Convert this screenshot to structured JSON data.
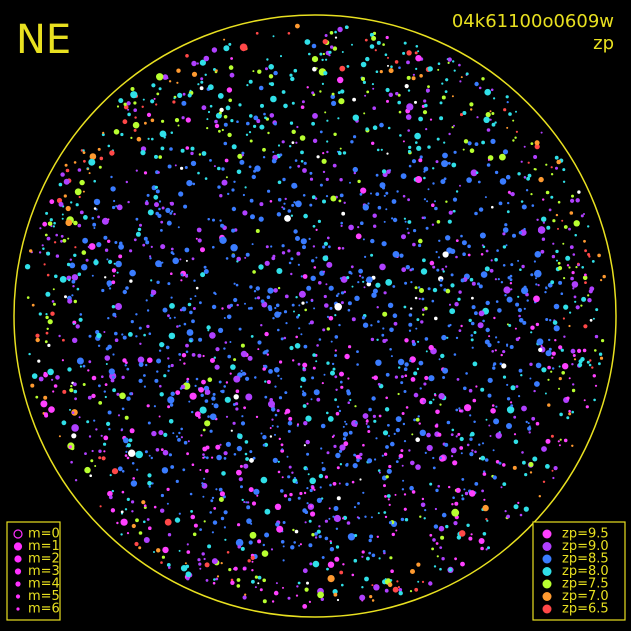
{
  "header": {
    "direction": "NE",
    "id": "04k61100o0609w",
    "mode": "zp"
  },
  "magnitude_legend": {
    "items": [
      "m=0",
      "m=1",
      "m=2",
      "m=3",
      "m=4",
      "m=5",
      "m=6"
    ],
    "color": "#ff30ff"
  },
  "zp_legend": {
    "items": [
      {
        "label": "zp=9.5",
        "color": "#ff40ff"
      },
      {
        "label": "zp=9.0",
        "color": "#b040ff"
      },
      {
        "label": "zp=8.5",
        "color": "#3a7cff"
      },
      {
        "label": "zp=8.0",
        "color": "#30e0e8"
      },
      {
        "label": "zp=7.5",
        "color": "#b8ff30"
      },
      {
        "label": "zp=7.0",
        "color": "#ff9a30"
      },
      {
        "label": "zp=6.5",
        "color": "#ff4848"
      }
    ]
  },
  "frame_color": "#e8e020"
}
